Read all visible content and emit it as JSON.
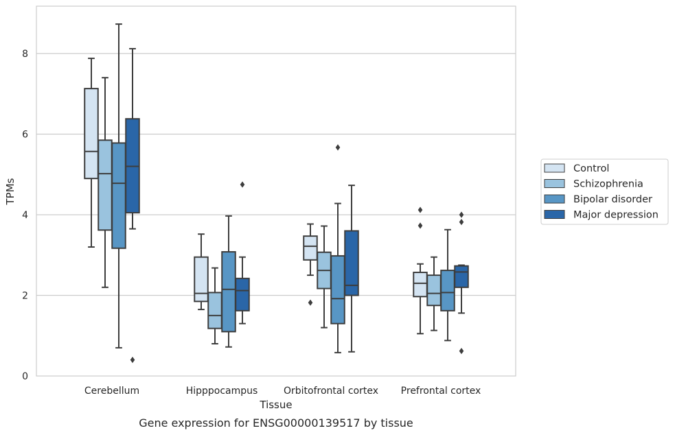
{
  "caption": "Gene expression for ENSG00000139517 by tissue",
  "chart_data": {
    "type": "box",
    "title": "",
    "xlabel": "Tissue",
    "ylabel": "TPMs",
    "ylim": [
      0,
      9.3
    ],
    "yticks": [
      0,
      2,
      4,
      6,
      8
    ],
    "grid": "horizontal",
    "legend_position": "right",
    "categories": [
      "Cerebellum",
      "Hipppocampus",
      "Orbitofrontal cortex",
      "Prefrontal cortex"
    ],
    "series": [
      {
        "name": "Control",
        "color": "#d4e4f2",
        "boxes": [
          {
            "whisker_low": 3.2,
            "q1": 4.9,
            "median": 5.57,
            "q3": 7.13,
            "whisker_high": 7.88,
            "outliers": []
          },
          {
            "whisker_low": 1.65,
            "q1": 1.85,
            "median": 2.05,
            "q3": 2.95,
            "whisker_high": 3.52,
            "outliers": []
          },
          {
            "whisker_low": 2.5,
            "q1": 2.88,
            "median": 3.22,
            "q3": 3.47,
            "whisker_high": 3.77,
            "outliers": [
              1.82
            ]
          },
          {
            "whisker_low": 1.05,
            "q1": 1.97,
            "median": 2.3,
            "q3": 2.57,
            "whisker_high": 2.78,
            "outliers": [
              3.73,
              4.12
            ]
          }
        ]
      },
      {
        "name": "Schizophrenia",
        "color": "#9ac3de",
        "boxes": [
          {
            "whisker_low": 2.2,
            "q1": 3.62,
            "median": 5.02,
            "q3": 5.85,
            "whisker_high": 7.4,
            "outliers": []
          },
          {
            "whisker_low": 0.8,
            "q1": 1.18,
            "median": 1.5,
            "q3": 2.07,
            "whisker_high": 2.68,
            "outliers": []
          },
          {
            "whisker_low": 1.2,
            "q1": 2.17,
            "median": 2.62,
            "q3": 3.07,
            "whisker_high": 3.72,
            "outliers": []
          },
          {
            "whisker_low": 1.13,
            "q1": 1.75,
            "median": 2.05,
            "q3": 2.5,
            "whisker_high": 2.95,
            "outliers": []
          }
        ]
      },
      {
        "name": "Bipolar disorder",
        "color": "#5896c5",
        "boxes": [
          {
            "whisker_low": 0.7,
            "q1": 3.17,
            "median": 4.78,
            "q3": 5.78,
            "whisker_high": 8.73,
            "outliers": []
          },
          {
            "whisker_low": 0.72,
            "q1": 1.1,
            "median": 2.15,
            "q3": 3.08,
            "whisker_high": 3.97,
            "outliers": []
          },
          {
            "whisker_low": 0.58,
            "q1": 1.3,
            "median": 1.92,
            "q3": 2.98,
            "whisker_high": 4.28,
            "outliers": [
              5.67
            ]
          },
          {
            "whisker_low": 0.88,
            "q1": 1.62,
            "median": 2.07,
            "q3": 2.62,
            "whisker_high": 3.63,
            "outliers": []
          }
        ]
      },
      {
        "name": "Major depression",
        "color": "#2a66a8",
        "boxes": [
          {
            "whisker_low": 3.65,
            "q1": 4.05,
            "median": 5.2,
            "q3": 6.38,
            "whisker_high": 8.12,
            "outliers": [
              0.4
            ]
          },
          {
            "whisker_low": 1.3,
            "q1": 1.62,
            "median": 2.12,
            "q3": 2.42,
            "whisker_high": 2.95,
            "outliers": [
              4.75
            ]
          },
          {
            "whisker_low": 0.6,
            "q1": 2.0,
            "median": 2.25,
            "q3": 3.6,
            "whisker_high": 4.73,
            "outliers": []
          },
          {
            "whisker_low": 1.56,
            "q1": 2.2,
            "median": 2.58,
            "q3": 2.73,
            "whisker_high": 2.75,
            "outliers": [
              0.62,
              3.82,
              4.0
            ]
          }
        ]
      }
    ]
  }
}
